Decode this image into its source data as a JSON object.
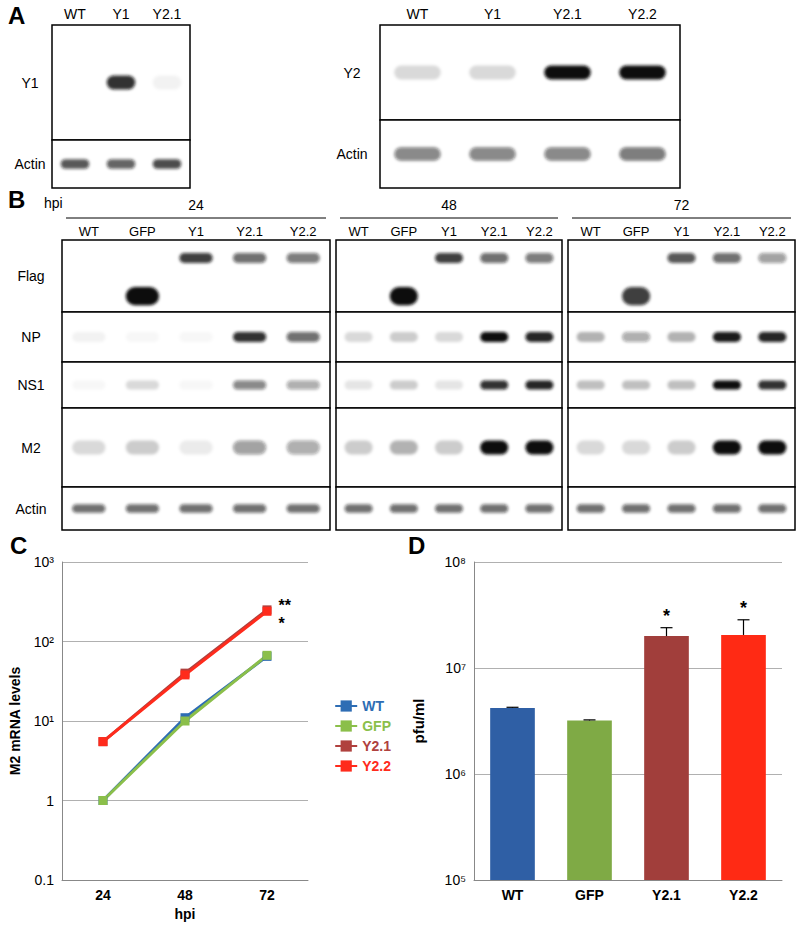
{
  "panels": {
    "A": {
      "panel": "A",
      "blots": [
        {
          "lanes": [
            "WT",
            "Y1",
            "Y2.1"
          ],
          "rows": [
            {
              "label": "Y1",
              "bands": [
                0,
                0.85,
                0.05
              ]
            },
            {
              "label": "Actin",
              "bands": [
                0.7,
                0.65,
                0.75
              ]
            }
          ]
        },
        {
          "lanes": [
            "WT",
            "Y1",
            "Y2.1",
            "Y2.2"
          ],
          "rows": [
            {
              "label": "Y2",
              "bands": [
                0.15,
                0.15,
                1,
                1
              ]
            },
            {
              "label": "Actin",
              "bands": [
                0.5,
                0.5,
                0.5,
                0.55
              ]
            }
          ]
        }
      ]
    },
    "B": {
      "panel": "B",
      "time_label": "hpi",
      "lanes": [
        "WT",
        "GFP",
        "Y1",
        "Y2.1",
        "Y2.2"
      ],
      "row_labels": [
        "Flag",
        "NP",
        "NS1",
        "M2",
        "Actin"
      ],
      "timepoints": [
        {
          "time": "24",
          "bands": [
            [
              0,
              0,
              0.8,
              0.6,
              0.55
            ],
            [
              0.05,
              0.03,
              0.03,
              0.85,
              0.6
            ],
            [
              0.03,
              0.15,
              0.03,
              0.5,
              0.35
            ],
            [
              0.15,
              0.2,
              0.08,
              0.4,
              0.35
            ],
            [
              0.6,
              0.6,
              0.6,
              0.6,
              0.6
            ]
          ],
          "flag_lower_bands": [
            0,
            1,
            0,
            0,
            0
          ]
        },
        {
          "time": "48",
          "bands": [
            [
              0,
              0,
              0.8,
              0.6,
              0.55
            ],
            [
              0.15,
              0.2,
              0.15,
              1,
              0.9
            ],
            [
              0.1,
              0.2,
              0.1,
              0.85,
              0.9
            ],
            [
              0.2,
              0.3,
              0.2,
              1,
              1
            ],
            [
              0.6,
              0.6,
              0.6,
              0.6,
              0.6
            ]
          ],
          "flag_lower_bands": [
            0,
            1,
            0,
            0,
            0
          ]
        },
        {
          "time": "72",
          "bands": [
            [
              0,
              0,
              0.7,
              0.6,
              0.4
            ],
            [
              0.3,
              0.35,
              0.3,
              0.95,
              0.9
            ],
            [
              0.25,
              0.25,
              0.25,
              1,
              0.85
            ],
            [
              0.15,
              0.15,
              0.2,
              1,
              1
            ],
            [
              0.6,
              0.6,
              0.6,
              0.6,
              0.6
            ]
          ],
          "flag_lower_bands": [
            0,
            0.8,
            0,
            0,
            0
          ]
        }
      ]
    }
  },
  "chart_data": [
    {
      "type": "line",
      "panel": "C",
      "x_label": "hpi",
      "y_label": "M2 mRNA levels",
      "categories": [
        "24",
        "48",
        "72"
      ],
      "log": "y",
      "ylim": [
        0.1,
        1000
      ],
      "yticks": [
        0.1,
        1,
        {
          "value": 10,
          "label": "10¹"
        },
        {
          "value": 100,
          "label": "10²"
        },
        {
          "value": 1000,
          "label": "10³"
        }
      ],
      "grid": true,
      "legend": "right",
      "marker": "square",
      "series": [
        {
          "name": "WT",
          "color": "#2e6db4",
          "values": [
            1,
            11,
            65
          ]
        },
        {
          "name": "GFP",
          "color": "#8bbf4a",
          "values": [
            1,
            10,
            67
          ]
        },
        {
          "name": "Y2.1",
          "color": "#b0413e",
          "values": [
            5.5,
            40,
            250
          ],
          "annotation": "**"
        },
        {
          "name": "Y2.2",
          "color": "#ff2b1c",
          "values": [
            5.5,
            38,
            240
          ],
          "annotation": "*"
        }
      ]
    },
    {
      "type": "bar",
      "panel": "D",
      "y_label": "pfu/ml",
      "categories": [
        "WT",
        "GFP",
        "Y2.1",
        "Y2.2"
      ],
      "values": [
        4200000,
        3200000,
        20000000,
        20500000
      ],
      "errors": [
        60000,
        40000,
        4000000,
        8000000
      ],
      "annotations": [
        null,
        null,
        "*",
        "*"
      ],
      "colors": [
        "#2f5fa5",
        "#7faa45",
        "#a13e3b",
        "#ff2a14"
      ],
      "log": "y",
      "ylim": [
        100000,
        100000000
      ],
      "yticks": [
        {
          "value": 100000,
          "label": "10⁵"
        },
        {
          "value": 1000000,
          "label": "10⁶"
        },
        {
          "value": 10000000,
          "label": "10⁷"
        },
        {
          "value": 100000000,
          "label": "10⁸"
        }
      ],
      "grid": true
    }
  ]
}
